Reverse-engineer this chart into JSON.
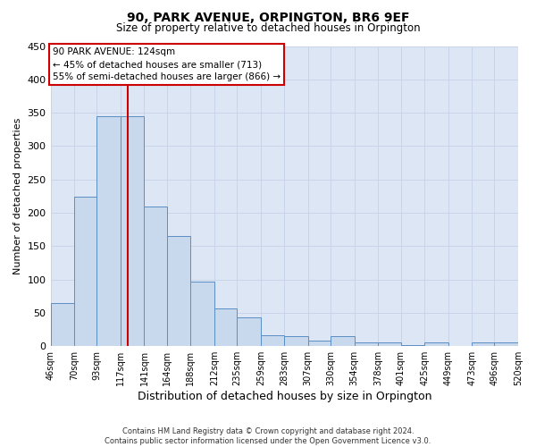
{
  "title": "90, PARK AVENUE, ORPINGTON, BR6 9EF",
  "subtitle": "Size of property relative to detached houses in Orpington",
  "xlabel": "Distribution of detached houses by size in Orpington",
  "ylabel": "Number of detached properties",
  "bar_color": "#c8d9ed",
  "bar_edge_color": "#5b8ec4",
  "grid_color": "#c8d4e8",
  "background_color": "#dce6f5",
  "figure_color": "#ffffff",
  "bin_edges": [
    46,
    70,
    93,
    117,
    141,
    164,
    188,
    212,
    235,
    259,
    283,
    307,
    330,
    354,
    378,
    401,
    425,
    449,
    473,
    496,
    520
  ],
  "bin_labels": [
    "46sqm",
    "70sqm",
    "93sqm",
    "117sqm",
    "141sqm",
    "164sqm",
    "188sqm",
    "212sqm",
    "235sqm",
    "259sqm",
    "283sqm",
    "307sqm",
    "330sqm",
    "354sqm",
    "378sqm",
    "401sqm",
    "425sqm",
    "449sqm",
    "473sqm",
    "496sqm",
    "520sqm"
  ],
  "bar_heights": [
    65,
    224,
    345,
    345,
    210,
    165,
    97,
    57,
    43,
    17,
    15,
    8,
    15,
    5,
    5,
    2,
    5,
    0,
    5,
    5
  ],
  "property_line_x": 124,
  "red_line_color": "#cc0000",
  "annotation_title": "90 PARK AVENUE: 124sqm",
  "annotation_line1": "← 45% of detached houses are smaller (713)",
  "annotation_line2": "55% of semi-detached houses are larger (866) →",
  "annotation_box_color": "#ffffff",
  "annotation_box_edge_color": "#cc0000",
  "ylim": [
    0,
    450
  ],
  "yticks": [
    0,
    50,
    100,
    150,
    200,
    250,
    300,
    350,
    400,
    450
  ],
  "footer_line1": "Contains HM Land Registry data © Crown copyright and database right 2024.",
  "footer_line2": "Contains public sector information licensed under the Open Government Licence v3.0."
}
